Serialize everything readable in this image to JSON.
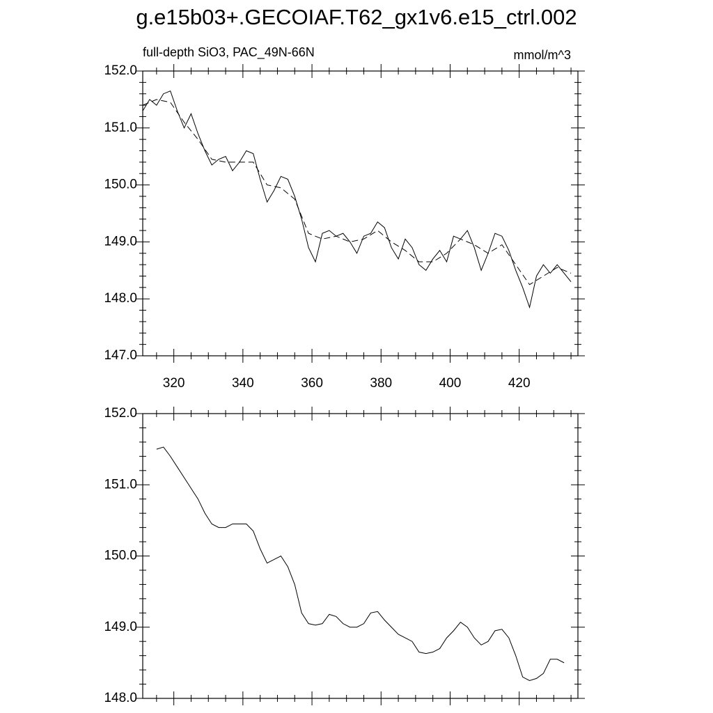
{
  "chart_data": [
    {
      "type": "line",
      "title": "g.e15b03+.GECOIAF.T62_gx1v6.e15_ctrl.002",
      "subtitle": "full-depth SiO3, PAC_49N-66N",
      "units": "mmol/m^3",
      "xlim": [
        311,
        437
      ],
      "xticks": [
        320,
        340,
        360,
        380,
        400,
        420
      ],
      "show_xtick_labels": true,
      "ylim": [
        147,
        152
      ],
      "yticks": [
        {
          "value": 147,
          "label": "147.0"
        },
        {
          "value": 148,
          "label": "148.0"
        },
        {
          "value": 149,
          "label": "149.0"
        },
        {
          "value": 150,
          "label": "150.0"
        },
        {
          "value": 151,
          "label": "151.0"
        },
        {
          "value": 152,
          "label": "152.0"
        }
      ],
      "series": [
        {
          "color": "#000000",
          "dash": false,
          "x": [
            311,
            313,
            315,
            317,
            319,
            321,
            323,
            325,
            327,
            329,
            331,
            333,
            335,
            337,
            339,
            341,
            343,
            345,
            347,
            349,
            351,
            353,
            355,
            357,
            359,
            361,
            363,
            365,
            367,
            369,
            371,
            373,
            375,
            377,
            379,
            381,
            383,
            385,
            387,
            389,
            391,
            393,
            395,
            397,
            399,
            401,
            403,
            405,
            407,
            409,
            411,
            413,
            415,
            417,
            419,
            421,
            423,
            425,
            427,
            429,
            431,
            433,
            435
          ],
          "values": [
            151.3,
            151.5,
            151.4,
            151.6,
            151.65,
            151.3,
            151.0,
            151.25,
            150.9,
            150.6,
            150.35,
            150.45,
            150.5,
            150.25,
            150.4,
            150.6,
            150.55,
            150.1,
            149.7,
            149.9,
            150.15,
            150.1,
            149.8,
            149.4,
            148.9,
            148.65,
            149.15,
            149.2,
            149.1,
            149.15,
            149.0,
            148.8,
            149.1,
            149.15,
            149.35,
            149.25,
            148.9,
            148.7,
            149.05,
            148.9,
            148.6,
            148.5,
            148.7,
            148.85,
            148.65,
            149.1,
            149.05,
            149.2,
            148.9,
            148.5,
            148.8,
            149.15,
            149.1,
            148.85,
            148.5,
            148.2,
            147.85,
            148.4,
            148.6,
            148.45,
            148.6,
            148.45,
            148.3
          ]
        },
        {
          "color": "#000000",
          "dash": true,
          "x": [
            311,
            315,
            319,
            323,
            327,
            331,
            335,
            339,
            343,
            347,
            351,
            355,
            359,
            363,
            367,
            371,
            375,
            379,
            383,
            387,
            391,
            395,
            399,
            403,
            407,
            411,
            415,
            419,
            423,
            427,
            431,
            435
          ],
          "values": [
            151.4,
            151.5,
            151.45,
            151.1,
            150.8,
            150.45,
            150.4,
            150.4,
            150.4,
            150.0,
            149.95,
            149.75,
            149.15,
            149.05,
            149.1,
            149.0,
            149.05,
            149.2,
            149.0,
            148.85,
            148.65,
            148.65,
            148.8,
            149.05,
            148.95,
            148.8,
            148.95,
            148.6,
            148.25,
            148.4,
            148.55,
            148.45
          ]
        }
      ]
    },
    {
      "type": "line",
      "xlim": [
        311,
        437
      ],
      "xticks": [
        320,
        340,
        360,
        380,
        400,
        420
      ],
      "show_xtick_labels": false,
      "ylim": [
        148,
        152
      ],
      "yticks": [
        {
          "value": 148,
          "label": "148.0"
        },
        {
          "value": 149,
          "label": "149.0"
        },
        {
          "value": 150,
          "label": "150.0"
        },
        {
          "value": 151,
          "label": "151.0"
        },
        {
          "value": 152,
          "label": "152.0"
        }
      ],
      "series": [
        {
          "color": "#000000",
          "dash": false,
          "x": [
            315,
            317,
            319,
            321,
            323,
            325,
            327,
            329,
            331,
            333,
            335,
            337,
            339,
            341,
            343,
            345,
            347,
            349,
            351,
            353,
            355,
            357,
            359,
            361,
            363,
            365,
            367,
            369,
            371,
            373,
            375,
            377,
            379,
            381,
            383,
            385,
            387,
            389,
            391,
            393,
            395,
            397,
            399,
            401,
            403,
            405,
            407,
            409,
            411,
            413,
            415,
            417,
            419,
            421,
            423,
            425,
            427,
            429,
            431,
            433
          ],
          "values": [
            151.5,
            151.53,
            151.4,
            151.25,
            151.1,
            150.95,
            150.8,
            150.6,
            150.45,
            150.4,
            150.4,
            150.45,
            150.45,
            150.45,
            150.35,
            150.1,
            149.9,
            149.95,
            150.0,
            149.85,
            149.6,
            149.2,
            149.05,
            149.03,
            149.05,
            149.18,
            149.15,
            149.05,
            149.0,
            149.0,
            149.05,
            149.2,
            149.22,
            149.1,
            149.0,
            148.9,
            148.85,
            148.8,
            148.65,
            148.63,
            148.65,
            148.7,
            148.85,
            148.95,
            149.07,
            149.0,
            148.85,
            148.75,
            148.8,
            148.95,
            148.97,
            148.85,
            148.6,
            148.3,
            148.25,
            148.28,
            148.35,
            148.55,
            148.55,
            148.5
          ]
        }
      ]
    }
  ]
}
